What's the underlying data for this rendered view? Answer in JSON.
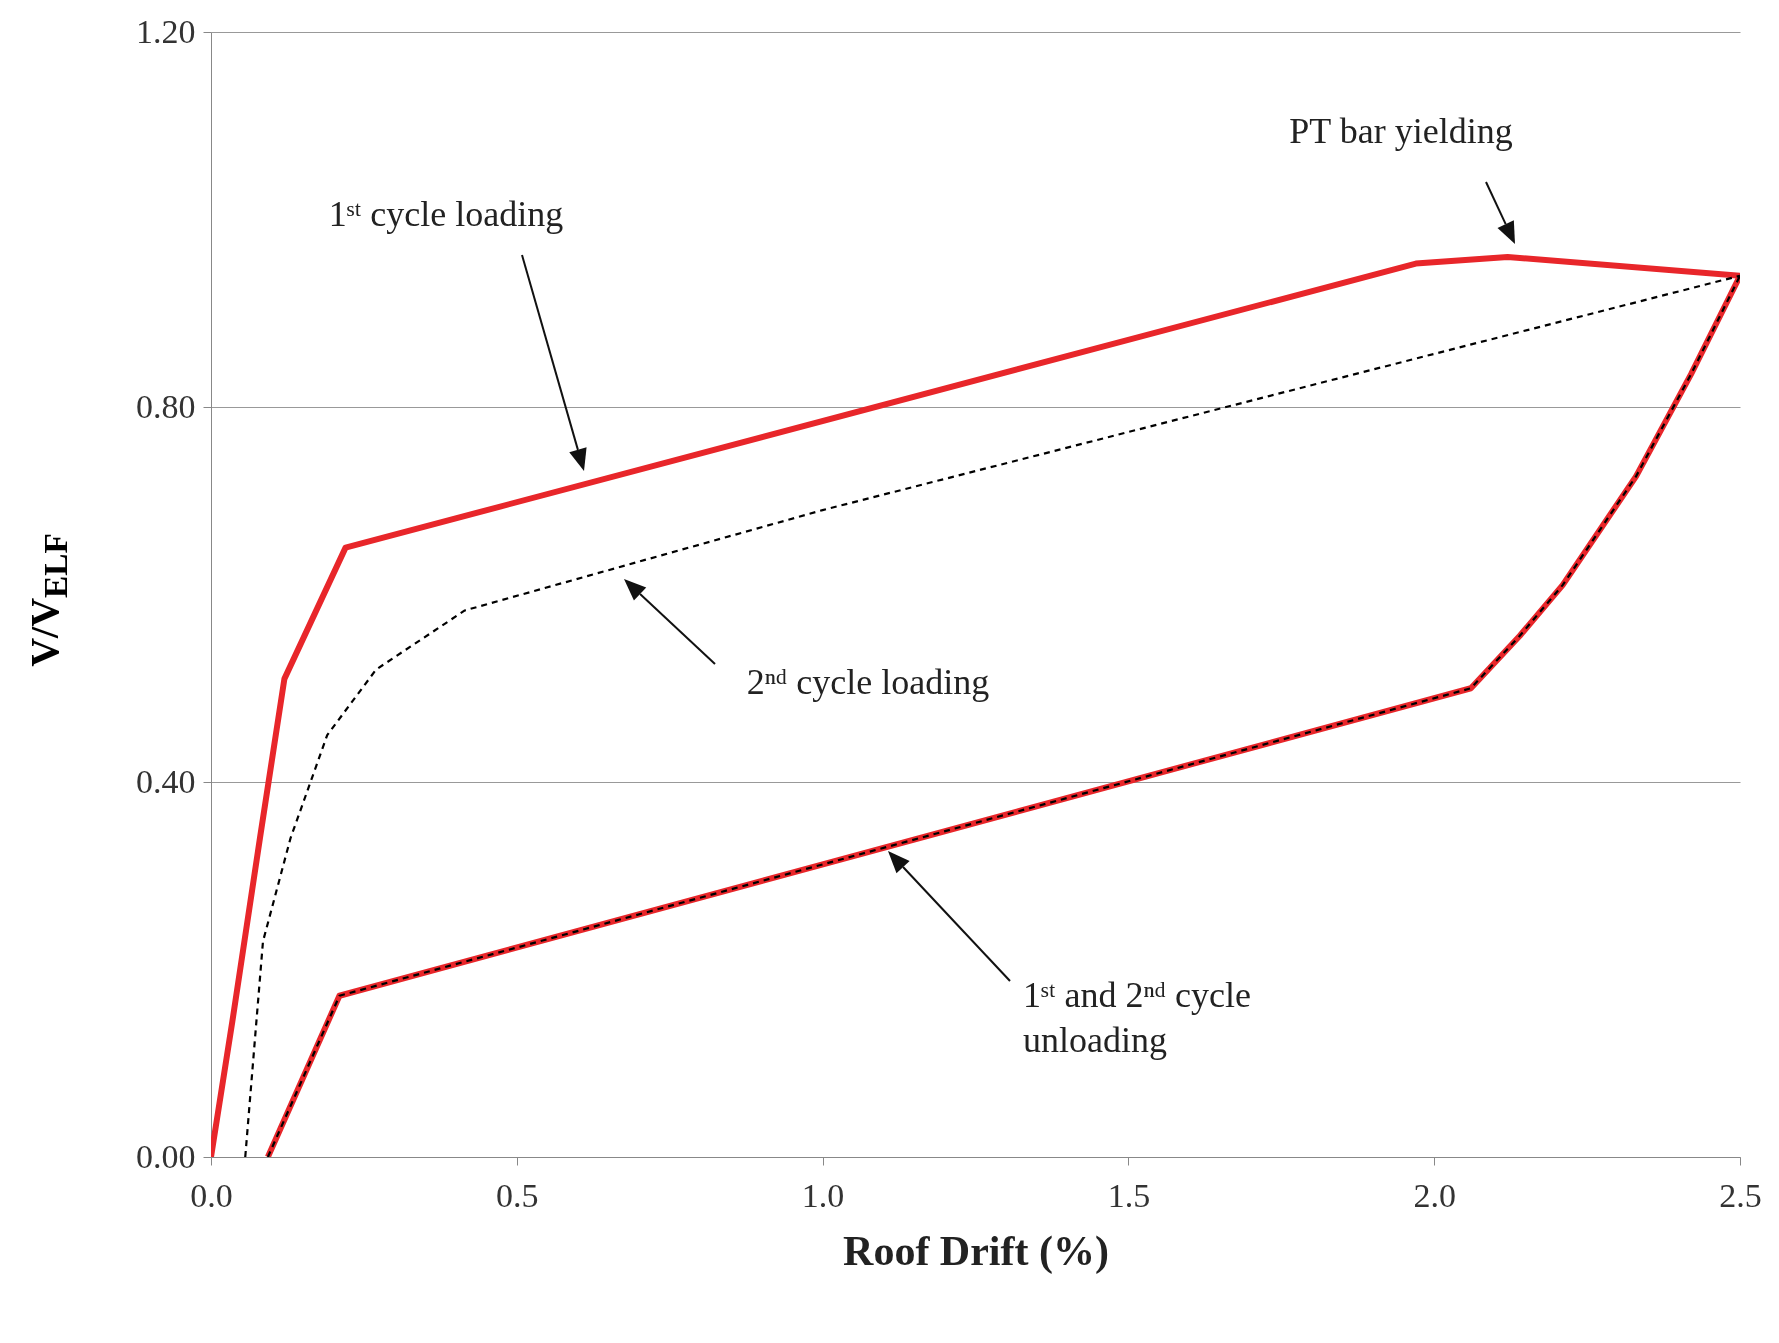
{
  "chart_data": {
    "type": "line",
    "xlabel": "Roof Drift (%)",
    "ylabel": "V/V$_{ELF}$",
    "xlim": [
      0,
      2.5
    ],
    "ylim": [
      0,
      1.2
    ],
    "xticks": [
      {
        "value": 0,
        "label": "0.0"
      },
      {
        "value": 0.5,
        "label": "0.5"
      },
      {
        "value": 1,
        "label": "1.0"
      },
      {
        "value": 1.5,
        "label": "1.5"
      },
      {
        "value": 2,
        "label": "2.0"
      },
      {
        "value": 2.5,
        "label": "2.5"
      }
    ],
    "yticks": [
      {
        "value": 0,
        "label": "0.00"
      },
      {
        "value": 0.4,
        "label": "0.40"
      },
      {
        "value": 0.8,
        "label": "0.80"
      },
      {
        "value": 1.2,
        "label": "1.20"
      }
    ],
    "grid": "y",
    "series": [
      {
        "color": "#e8262a",
        "line_style": "solid",
        "x": [
          0,
          0.035,
          0.08,
          0.12,
          0.22,
          1.97,
          2.12,
          2.5
        ],
        "values": [
          0,
          0.145,
          0.34,
          0.51,
          0.65,
          0.953,
          0.96,
          0.94
        ]
      },
      {
        "color": "#e8262a",
        "line_style": "solid",
        "x": [
          0.093,
          0.21,
          2.06,
          2.14,
          2.21,
          2.33,
          2.42,
          2.5
        ],
        "values": [
          0,
          0.172,
          0.5,
          0.556,
          0.61,
          0.726,
          0.835,
          0.94
        ]
      },
      {
        "color": "#000000",
        "line_style": "dashed",
        "x": [
          0.056,
          0.085,
          0.13,
          0.19,
          0.27,
          0.415,
          1.0,
          2.5
        ],
        "values": [
          0,
          0.23,
          0.34,
          0.45,
          0.52,
          0.583,
          0.69,
          0.94
        ]
      },
      {
        "color": "#000000",
        "line_style": "dashed",
        "x": [
          0.093,
          0.21,
          2.06,
          2.14,
          2.21,
          2.33,
          2.42,
          2.5
        ],
        "values": [
          0,
          0.172,
          0.5,
          0.556,
          0.61,
          0.726,
          0.835,
          0.94
        ]
      }
    ],
    "annotations": [
      "1ˢᵗ cycle loading",
      "PT bar yielding",
      "2ⁿᵈ cycle loading",
      "1ˢᵗ and 2ⁿᵈ cycle\nunloading"
    ]
  }
}
